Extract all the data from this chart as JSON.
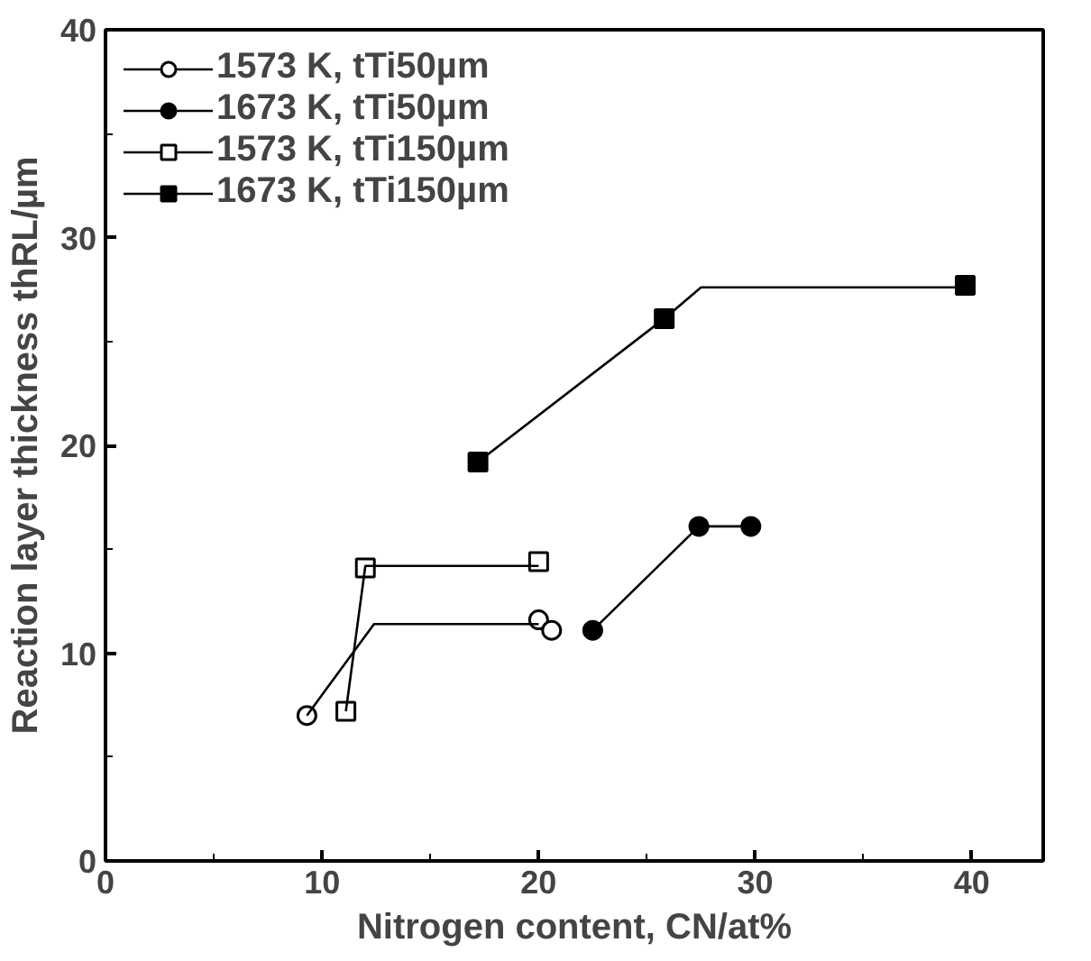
{
  "chart_data": {
    "type": "scatter",
    "xlabel": "Nitrogen content, CN/at%",
    "ylabel": "Reaction layer thickness thRL/µm",
    "xlim": [
      0,
      43.3
    ],
    "ylim": [
      0,
      40
    ],
    "xticks": [
      0,
      10,
      20,
      30,
      40
    ],
    "yticks": [
      0,
      10,
      20,
      30,
      40
    ],
    "grid": false,
    "legend": "top left",
    "series": [
      {
        "name": "1573 K, tTi50µm",
        "color": "#000000",
        "marker": "circle_open",
        "x": [
          9.3,
          20.0,
          20.6
        ],
        "values": [
          7.0,
          11.6,
          11.1
        ]
      },
      {
        "type": "line",
        "color": "#000000",
        "marker": "none",
        "x": [
          9.3,
          12.4,
          20.0
        ],
        "values": [
          7.0,
          11.4,
          11.4
        ]
      },
      {
        "name": "1673 K, tTi50µm",
        "color": "#000000",
        "marker": "circle",
        "x": [
          22.5,
          27.4,
          29.8
        ],
        "values": [
          11.1,
          16.1,
          16.1
        ]
      },
      {
        "type": "line",
        "color": "#000000",
        "marker": "none",
        "x": [
          22.5,
          27.4,
          29.8
        ],
        "values": [
          11.1,
          16.1,
          16.1
        ]
      },
      {
        "name": "1573 K, tTi150µm",
        "color": "#000000",
        "marker": "square_open",
        "x": [
          11.1,
          12.0,
          20.0
        ],
        "values": [
          7.2,
          14.1,
          14.4
        ]
      },
      {
        "type": "line",
        "color": "#000000",
        "marker": "none",
        "x": [
          11.1,
          12.0,
          20.0
        ],
        "values": [
          7.2,
          14.2,
          14.2
        ]
      },
      {
        "name": "1673 K, tTi150µm",
        "color": "#000000",
        "marker": "square",
        "x": [
          17.2,
          25.8,
          39.7
        ],
        "values": [
          19.2,
          26.1,
          27.7
        ]
      },
      {
        "type": "line",
        "color": "#000000",
        "marker": "none",
        "x": [
          17.2,
          25.8,
          27.5,
          39.7
        ],
        "values": [
          19.2,
          26.1,
          27.6,
          27.6
        ]
      }
    ]
  }
}
